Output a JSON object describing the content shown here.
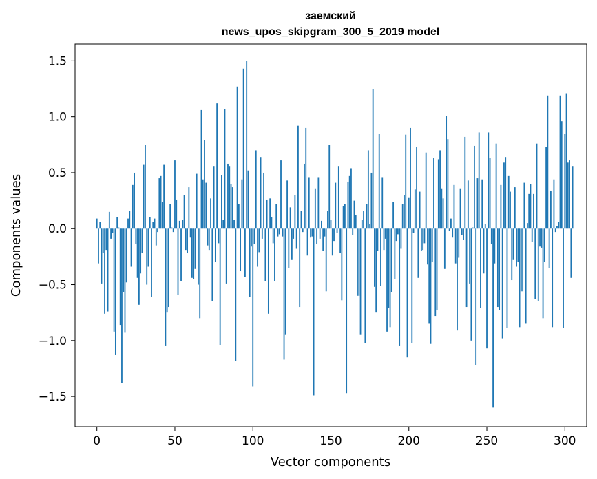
{
  "chart_data": {
    "type": "bar",
    "title_lines": [
      "заемский",
      "news_upos_skipgram_300_5_2019 model"
    ],
    "xlabel": "Vector components",
    "ylabel": "Components values",
    "xlim": [
      -14,
      314
    ],
    "ylim": [
      -1.77,
      1.65
    ],
    "x_ticks": [
      0,
      50,
      100,
      150,
      200,
      250,
      300
    ],
    "y_ticks": [
      -1.5,
      -1.0,
      -0.5,
      0.0,
      0.5,
      1.0,
      1.5
    ],
    "y_tick_labels": [
      "−1.5",
      "−1.0",
      "−0.5",
      "0.0",
      "0.5",
      "1.0",
      "1.5"
    ],
    "grid": false,
    "bar_color": "#1f77b4",
    "values": [
      0.09,
      -0.31,
      0.06,
      -0.49,
      -0.22,
      -0.76,
      -0.19,
      -0.74,
      0.15,
      -0.09,
      -0.04,
      -0.92,
      -1.13,
      0.1,
      0.01,
      -0.86,
      -1.38,
      -0.57,
      -0.93,
      -0.48,
      0.09,
      0.16,
      -0.34,
      0.39,
      0.5,
      -0.14,
      -0.44,
      -0.68,
      -0.4,
      -0.22,
      0.57,
      0.75,
      -0.5,
      -0.34,
      0.1,
      -0.61,
      0.06,
      0.09,
      -0.15,
      -0.03,
      0.45,
      0.47,
      0.24,
      0.57,
      -1.05,
      -0.75,
      -0.7,
      0.22,
      0.01,
      -0.03,
      0.61,
      0.26,
      -0.59,
      0.07,
      -0.47,
      0.08,
      0.3,
      -0.19,
      -0.22,
      0.37,
      -0.08,
      -0.44,
      -0.45,
      -0.36,
      0.49,
      -0.5,
      -0.8,
      1.06,
      0.44,
      0.79,
      0.41,
      -0.15,
      -0.19,
      0.27,
      -0.65,
      0.56,
      -0.3,
      1.12,
      -0.13,
      -1.04,
      0.48,
      0.08,
      1.07,
      -0.49,
      0.58,
      0.56,
      0.4,
      0.37,
      0.08,
      -1.18,
      1.27,
      0.22,
      -0.38,
      0.44,
      1.43,
      -0.43,
      1.5,
      0.52,
      -0.61,
      -0.16,
      -1.41,
      -0.14,
      0.7,
      -0.34,
      -0.21,
      0.64,
      -0.09,
      0.5,
      -0.47,
      0.26,
      -0.76,
      0.27,
      0.1,
      -0.13,
      -0.47,
      0.22,
      -0.07,
      -0.05,
      0.61,
      -0.07,
      -1.17,
      -0.95,
      0.43,
      -0.35,
      0.19,
      -0.28,
      -0.09,
      0.3,
      -0.18,
      0.92,
      -0.7,
      0.16,
      -0.03,
      0.58,
      0.9,
      -0.24,
      0.46,
      -0.08,
      -0.07,
      -1.49,
      0.36,
      -0.14,
      0.46,
      -0.09,
      0.07,
      -0.2,
      -0.07,
      -0.56,
      0.16,
      0.75,
      0.08,
      -0.24,
      -0.11,
      0.41,
      -0.04,
      0.56,
      -0.22,
      -0.64,
      0.2,
      0.22,
      -1.47,
      0.42,
      0.47,
      0.54,
      -0.06,
      0.25,
      0.12,
      -0.6,
      -0.6,
      -0.95,
      0.08,
      0.16,
      -1.02,
      0.22,
      0.7,
      0.04,
      0.5,
      1.25,
      -0.52,
      -0.75,
      -0.2,
      0.85,
      -0.51,
      0.46,
      -0.19,
      -0.09,
      -0.92,
      -0.71,
      -0.88,
      -0.57,
      0.24,
      -0.45,
      -0.11,
      -0.05,
      -1.05,
      -0.18,
      0.22,
      0.3,
      0.84,
      -1.15,
      0.28,
      0.9,
      -1.02,
      -0.04,
      0.35,
      0.73,
      -0.44,
      0.33,
      -0.2,
      -0.19,
      -0.13,
      0.68,
      -0.32,
      -0.85,
      -1.03,
      -0.3,
      0.63,
      -0.78,
      -0.73,
      0.62,
      0.7,
      0.36,
      0.27,
      -0.36,
      1.01,
      0.8,
      -0.02,
      0.09,
      -0.08,
      0.39,
      -0.31,
      -0.91,
      -0.26,
      0.36,
      -0.06,
      -0.1,
      0.82,
      -0.7,
      0.43,
      -0.49,
      -1.0,
      0.01,
      0.74,
      -1.22,
      0.45,
      0.86,
      -0.71,
      0.44,
      -0.4,
      0.04,
      -1.07,
      0.86,
      0.63,
      -0.14,
      -1.6,
      -0.31,
      0.76,
      -0.7,
      -0.73,
      0.39,
      -0.98,
      0.59,
      0.64,
      -0.89,
      0.47,
      0.33,
      -0.46,
      -0.28,
      0.37,
      -0.34,
      -0.3,
      -0.88,
      -0.56,
      -0.56,
      0.41,
      -0.85,
      0.05,
      0.31,
      0.4,
      -0.12,
      0.31,
      -0.63,
      0.76,
      -0.65,
      -0.16,
      -0.17,
      -0.8,
      -0.3,
      0.73,
      1.19,
      -0.35,
      0.34,
      -0.88,
      0.44,
      -0.03,
      0.02,
      0.06,
      1.19,
      0.96,
      -0.89,
      0.85,
      1.21,
      0.59,
      0.61,
      -0.44,
      0.56
    ]
  }
}
